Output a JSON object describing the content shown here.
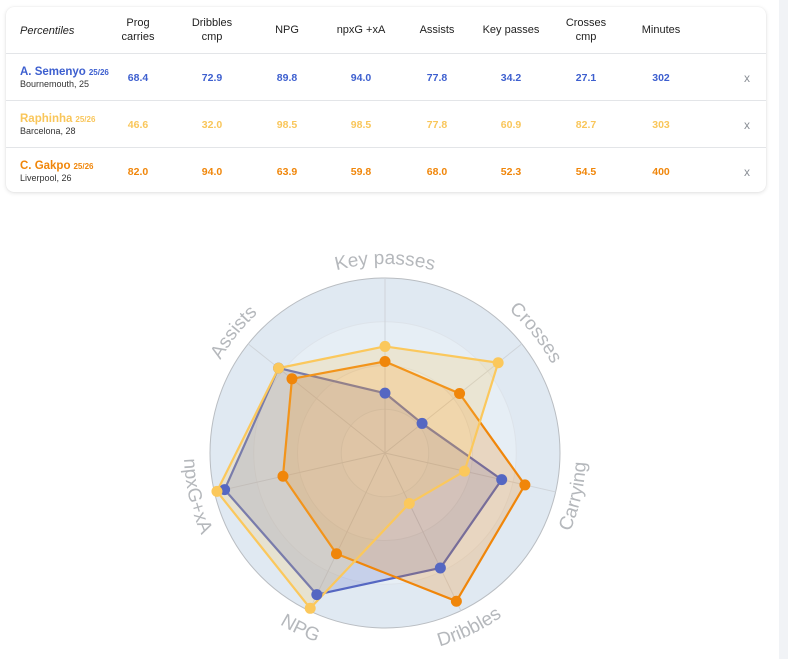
{
  "table": {
    "title": "Percentiles",
    "columns": [
      "Prog\ncarries",
      "Dribbles\ncmp",
      "NPG",
      "npxG +xA",
      "Assists",
      "Key passes",
      "Crosses\ncmp",
      "Minutes"
    ],
    "remove_label": "x",
    "players": [
      {
        "name": "A. Semenyo",
        "season": "25/26",
        "club": "Bournemouth, 25",
        "color": "#3d5fcf",
        "values": [
          "68.4",
          "72.9",
          "89.8",
          "94.0",
          "77.8",
          "34.2",
          "27.1",
          "302"
        ]
      },
      {
        "name": "Raphinha",
        "season": "25/26",
        "club": "Barcelona, 28",
        "color": "#f9c65a",
        "values": [
          "46.6",
          "32.0",
          "98.5",
          "98.5",
          "77.8",
          "60.9",
          "82.7",
          "303"
        ]
      },
      {
        "name": "C. Gakpo",
        "season": "25/26",
        "club": "Liverpool, 26",
        "color": "#f0860a",
        "values": [
          "82.0",
          "94.0",
          "63.9",
          "59.8",
          "68.0",
          "52.3",
          "54.5",
          "400"
        ]
      }
    ]
  },
  "chart_data": {
    "type": "radar",
    "axes": [
      "Key passes",
      "Crosses",
      "Carrying",
      "Dribbles",
      "NPG",
      "npxG+xA",
      "Assists"
    ],
    "range": [
      0,
      100
    ],
    "grid_rings": 4,
    "series": [
      {
        "name": "A. Semenyo",
        "color": "#5567c2",
        "values": [
          34.2,
          27.1,
          68.4,
          72.9,
          89.8,
          94.0,
          77.8
        ]
      },
      {
        "name": "C. Gakpo",
        "color": "#f0860a",
        "values": [
          52.3,
          54.5,
          82.0,
          94.0,
          63.9,
          59.8,
          68.0
        ]
      },
      {
        "name": "Raphinha",
        "color": "#fbc85c",
        "values": [
          60.9,
          82.7,
          46.6,
          32.0,
          98.5,
          98.5,
          77.8
        ]
      }
    ]
  }
}
